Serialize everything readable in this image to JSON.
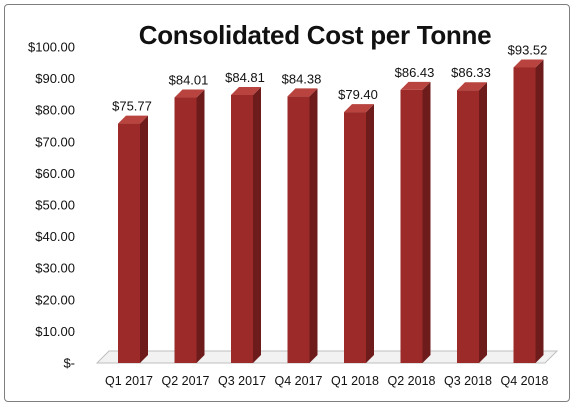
{
  "chart_data": {
    "type": "bar",
    "title": "Consolidated Cost per Tonne",
    "categories": [
      "Q1 2017",
      "Q2 2017",
      "Q3 2017",
      "Q4 2017",
      "Q1 2018",
      "Q2 2018",
      "Q3 2018",
      "Q4 2018"
    ],
    "values": [
      75.77,
      84.01,
      84.81,
      84.38,
      79.4,
      86.43,
      86.33,
      93.52
    ],
    "data_labels": [
      "$75.77",
      "$84.01",
      "$84.81",
      "$84.38",
      "$79.40",
      "$86.43",
      "$86.33",
      "$93.52"
    ],
    "ylim": [
      0,
      100
    ],
    "yticks": [
      0,
      10,
      20,
      30,
      40,
      50,
      60,
      70,
      80,
      90,
      100
    ],
    "ytick_labels": [
      "$-",
      "$10.00",
      "$20.00",
      "$30.00",
      "$40.00",
      "$50.00",
      "$60.00",
      "$70.00",
      "$80.00",
      "$90.00",
      "$100.00"
    ],
    "xlabel": "",
    "ylabel": "",
    "grid": false,
    "legend": "none",
    "colors": {
      "bar_front": "#9b2a28",
      "bar_side": "#6e1c1b",
      "bar_top": "#b8433f",
      "floor": "#bfbfbf"
    }
  }
}
